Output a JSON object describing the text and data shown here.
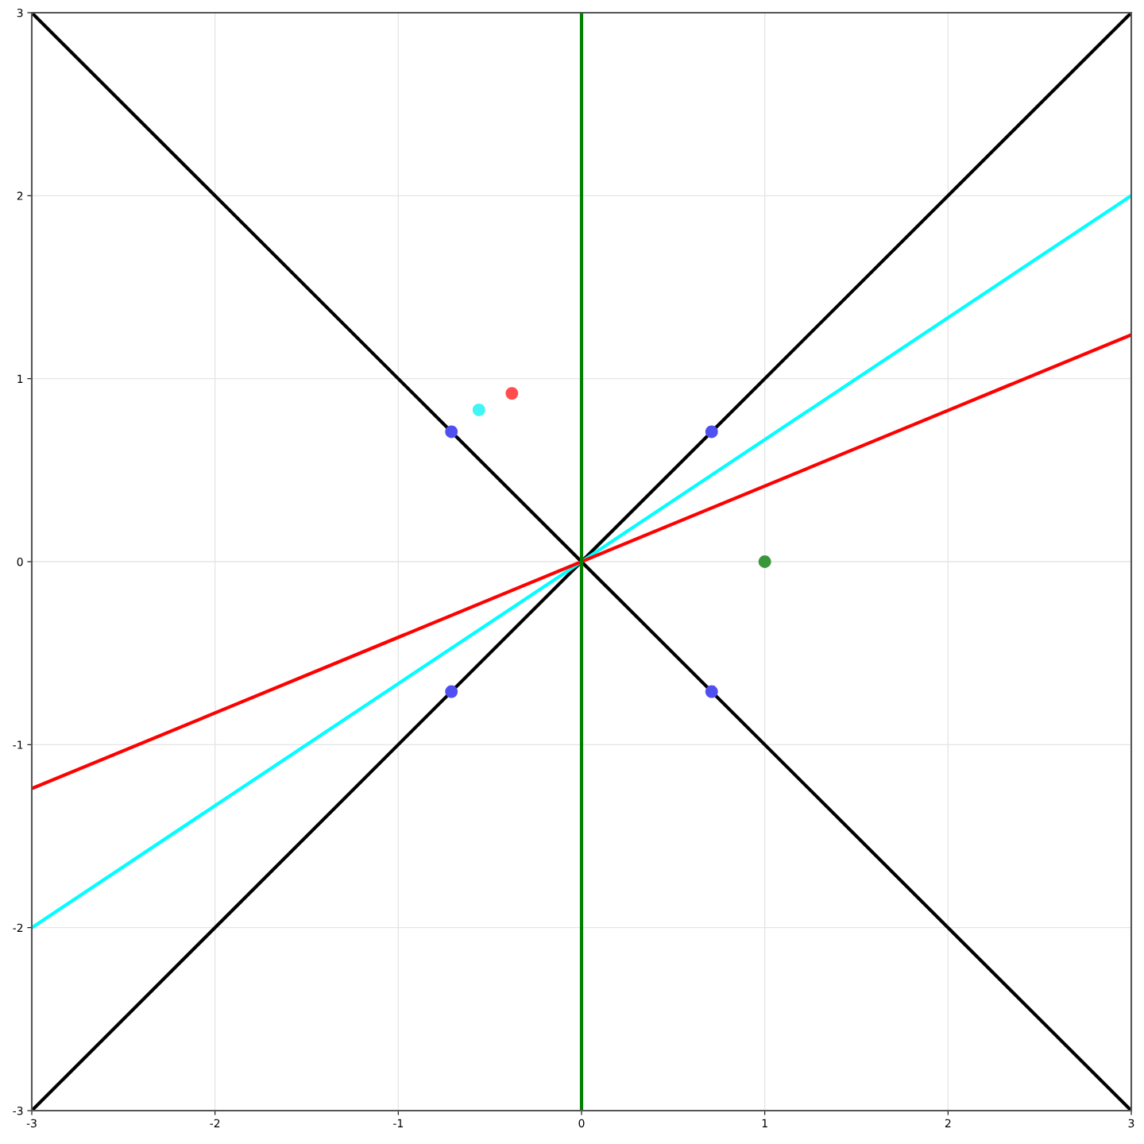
{
  "chart_data": {
    "type": "scatter",
    "xlim": [
      -3,
      3
    ],
    "ylim": [
      -3,
      3
    ],
    "xticks": [
      -3,
      -2,
      -1,
      0,
      1,
      2,
      3
    ],
    "yticks": [
      -3,
      -2,
      -1,
      0,
      1,
      2,
      3
    ],
    "grid": true,
    "legend": false,
    "series": [
      {
        "type": "line",
        "color": "#000000",
        "x": [
          -3,
          3
        ],
        "values": [
          -3,
          3
        ]
      },
      {
        "type": "line",
        "color": "#000000",
        "x": [
          -3,
          3
        ],
        "values": [
          3,
          -3
        ]
      },
      {
        "type": "line",
        "color": "#00ffff",
        "x": [
          -3,
          3
        ],
        "values": [
          -2,
          2
        ]
      },
      {
        "type": "line",
        "color": "#ff0000",
        "x": [
          -3,
          3
        ],
        "values": [
          -1.24,
          1.24
        ]
      },
      {
        "type": "line",
        "color": "#008000",
        "x": [
          0,
          0
        ],
        "values": [
          -3,
          3
        ]
      },
      {
        "color": "#5050f0",
        "x": [
          -0.71,
          0.71,
          -0.71,
          0.71
        ],
        "values": [
          0.71,
          0.71,
          -0.71,
          -0.71
        ]
      },
      {
        "color": "#40f5f5",
        "x": [
          -0.56
        ],
        "values": [
          0.83
        ]
      },
      {
        "color": "#ff4d4d",
        "x": [
          -0.38
        ],
        "values": [
          0.92
        ]
      },
      {
        "color": "#3a963a",
        "x": [
          1
        ],
        "values": [
          0
        ]
      }
    ]
  }
}
